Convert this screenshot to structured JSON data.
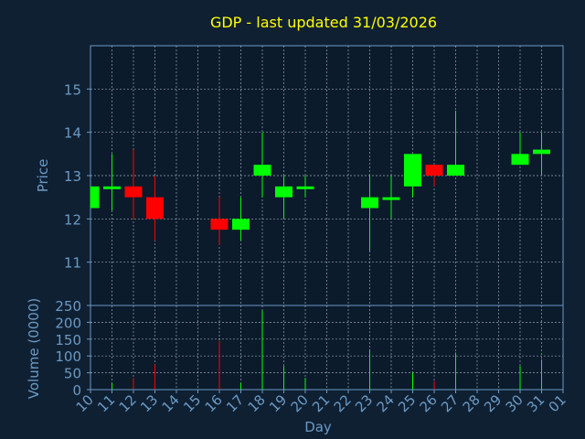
{
  "chart_data": {
    "type": "candlestick",
    "title": "GDP - last updated 31/03/2026",
    "colors": {
      "background": "#0f2033",
      "plot_background": "#0b1b2c",
      "title": "#ffff00",
      "axis": "#6b9ac4",
      "grid": "#c8d3dc",
      "up": "#00ff00",
      "down": "#ff0000"
    },
    "price_panel": {
      "ylabel": "Price",
      "ylim": [
        10,
        16
      ],
      "yticks": [
        "11",
        "12",
        "13",
        "14",
        "15"
      ],
      "grid": true
    },
    "volume_panel": {
      "ylabel": "Volume (0000)",
      "ylim": [
        0,
        250
      ],
      "yticks": [
        "0",
        "50",
        "100",
        "150",
        "200",
        "250"
      ],
      "grid": true
    },
    "xlabel": "Day",
    "xticks": [
      "10",
      "11",
      "12",
      "13",
      "14",
      "15",
      "16",
      "17",
      "18",
      "19",
      "20",
      "21",
      "22",
      "23",
      "24",
      "25",
      "26",
      "27",
      "28",
      "29",
      "30",
      "31",
      "01"
    ],
    "candles": [
      {
        "day": "10",
        "open": 12.25,
        "high": 12.75,
        "low": 12.25,
        "close": 12.75,
        "volume": 0
      },
      {
        "day": "11",
        "open": 12.75,
        "high": 13.5,
        "low": 12.2,
        "close": 12.75,
        "volume": 20
      },
      {
        "day": "12",
        "open": 12.75,
        "high": 13.6,
        "low": 12.0,
        "close": 12.5,
        "volume": 35
      },
      {
        "day": "13",
        "open": 12.5,
        "high": 13.0,
        "low": 11.5,
        "close": 12.0,
        "volume": 75
      },
      {
        "day": "16",
        "open": 12.0,
        "high": 12.5,
        "low": 11.4,
        "close": 11.75,
        "volume": 145
      },
      {
        "day": "17",
        "open": 11.75,
        "high": 12.5,
        "low": 11.5,
        "close": 12.0,
        "volume": 20
      },
      {
        "day": "18",
        "open": 13.0,
        "high": 14.0,
        "low": 12.5,
        "close": 13.25,
        "volume": 235
      },
      {
        "day": "19",
        "open": 12.5,
        "high": 13.0,
        "low": 12.0,
        "close": 12.75,
        "volume": 70
      },
      {
        "day": "20",
        "open": 12.75,
        "high": 13.0,
        "low": 12.5,
        "close": 12.75,
        "volume": 35
      },
      {
        "day": "23",
        "open": 12.25,
        "high": 13.0,
        "low": 11.25,
        "close": 12.5,
        "volume": 120
      },
      {
        "day": "24",
        "open": 12.5,
        "high": 13.0,
        "low": 12.0,
        "close": 12.5,
        "volume": 0
      },
      {
        "day": "25",
        "open": 12.75,
        "high": 13.5,
        "low": 12.5,
        "close": 13.5,
        "volume": 50
      },
      {
        "day": "26",
        "open": 13.25,
        "high": 13.25,
        "low": 12.75,
        "close": 13.0,
        "volume": 25
      },
      {
        "day": "27",
        "open": 13.0,
        "high": 14.5,
        "low": 13.0,
        "close": 13.25,
        "volume": 110
      },
      {
        "day": "30",
        "open": 13.25,
        "high": 14.0,
        "low": 13.25,
        "close": 13.5,
        "volume": 70
      },
      {
        "day": "31",
        "open": 13.5,
        "high": 14.0,
        "low": 13.0,
        "close": 13.6,
        "volume": 90
      }
    ]
  }
}
